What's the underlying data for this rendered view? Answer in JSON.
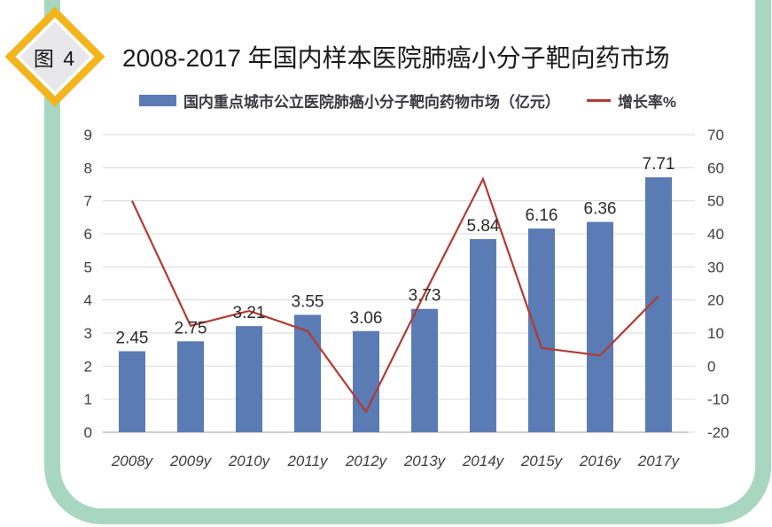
{
  "badge": {
    "label": "图 4"
  },
  "title": "2008-2017 年国内样本医院肺癌小分子靶向药市场",
  "legend": [
    {
      "type": "bar",
      "label": "国内重点城市公立医院肺癌小分子靶向药物市场（亿元）",
      "color": "#5b7bb4"
    },
    {
      "type": "line",
      "label": "增长率%",
      "color": "#b13a32"
    }
  ],
  "theme": {
    "frame_color": "#a9d6c0",
    "badge_gold": "#f2b51d",
    "badge_inner": "#e8e8ea"
  },
  "chart_data": {
    "type": "bar+line",
    "title": "2008-2017 年国内样本医院肺癌小分子靶向药市场",
    "categories": [
      "2008y",
      "2009y",
      "2010y",
      "2011y",
      "2012y",
      "2013y",
      "2014y",
      "2015y",
      "2016y",
      "2017y"
    ],
    "series": [
      {
        "name": "国内重点城市公立医院肺癌小分子靶向药物市场（亿元）",
        "type": "bar",
        "axis": "left",
        "color": "#5b7bb4",
        "values": [
          2.45,
          2.75,
          3.21,
          3.55,
          3.06,
          3.73,
          5.84,
          6.16,
          6.36,
          7.71
        ],
        "labels": [
          "2.45",
          "2.75",
          "3.21",
          "3.55",
          "3.06",
          "3.73",
          "5.84",
          "6.16",
          "6.36",
          "7.71"
        ]
      },
      {
        "name": "增长率%",
        "type": "line",
        "axis": "right",
        "color": "#b13a32",
        "values": [
          50.0,
          12.2,
          16.7,
          10.6,
          -13.8,
          21.9,
          56.6,
          5.5,
          3.2,
          21.2
        ]
      }
    ],
    "left_axis": {
      "min": 0,
      "max": 9,
      "step": 1,
      "ticks": [
        0,
        1,
        2,
        3,
        4,
        5,
        6,
        7,
        8,
        9
      ]
    },
    "right_axis": {
      "min": -20,
      "max": 70,
      "step": 10,
      "ticks": [
        -20,
        -10,
        0,
        10,
        20,
        30,
        40,
        50,
        60,
        70
      ]
    },
    "grid": true,
    "grid_color": "#d9d9d9",
    "axis_line_color": "#bdbdbd",
    "legend_position": "top"
  }
}
